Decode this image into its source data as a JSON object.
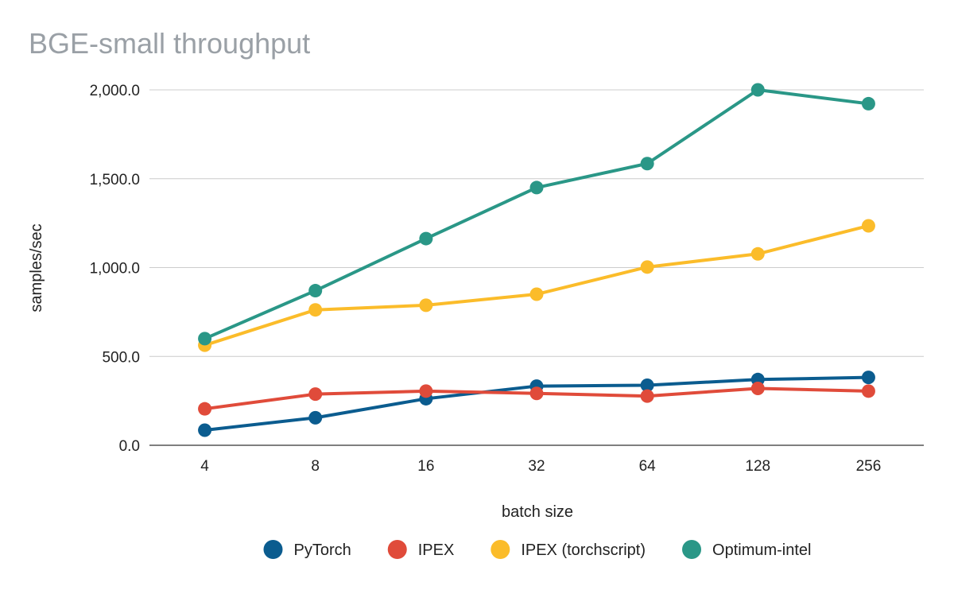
{
  "chart_data": {
    "type": "line",
    "title": "BGE-small throughput",
    "xlabel": "batch size",
    "ylabel": "samples/sec",
    "categories": [
      "4",
      "8",
      "16",
      "32",
      "64",
      "128",
      "256"
    ],
    "ylim": [
      0,
      2000
    ],
    "yticks": [
      "0.0",
      "500.0",
      "1,000.0",
      "1,500.0",
      "2,000.0"
    ],
    "ytick_values": [
      0,
      500,
      1000,
      1500,
      2000
    ],
    "grid": true,
    "legend_position": "bottom",
    "series": [
      {
        "name": "PyTorch",
        "color": "#0b5c8f",
        "values": [
          85,
          155,
          262,
          333,
          338,
          370,
          382
        ]
      },
      {
        "name": "IPEX",
        "color": "#e04b3a",
        "values": [
          205,
          288,
          305,
          292,
          277,
          320,
          305
        ]
      },
      {
        "name": "IPEX (torchscript)",
        "color": "#fbbc2a",
        "values": [
          563,
          762,
          788,
          850,
          1003,
          1077,
          1235
        ]
      },
      {
        "name": "Optimum-intel",
        "color": "#2a9787",
        "values": [
          600,
          870,
          1163,
          1450,
          1585,
          2000,
          1922
        ]
      }
    ]
  }
}
